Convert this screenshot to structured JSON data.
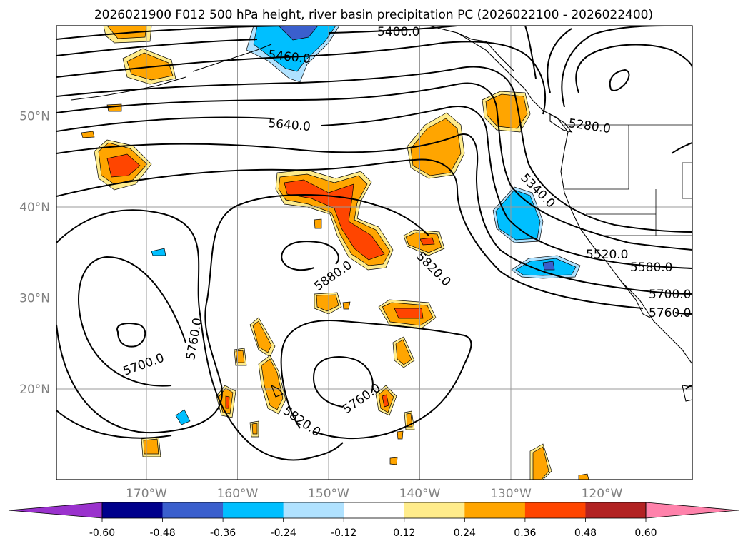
{
  "title": "2026021900 F012 500 hPa height, river basin precipitation PC (2026022100 - 2026022400)",
  "axes": {
    "lon_ticks": [
      {
        "value": -170,
        "label": "170°W"
      },
      {
        "value": -160,
        "label": "160°W"
      },
      {
        "value": -150,
        "label": "150°W"
      },
      {
        "value": -140,
        "label": "140°W"
      },
      {
        "value": -130,
        "label": "130°W"
      },
      {
        "value": -120,
        "label": "120°W"
      }
    ],
    "lat_ticks": [
      {
        "value": 20,
        "label": "20°N"
      },
      {
        "value": 30,
        "label": "30°N"
      },
      {
        "value": 40,
        "label": "40°N"
      },
      {
        "value": 50,
        "label": "50°N"
      }
    ],
    "extent": {
      "lon": [
        -180,
        -110
      ],
      "lat": [
        10,
        59
      ]
    },
    "grid": true
  },
  "colorbar": {
    "orientation": "horizontal",
    "extend": "both",
    "tick_labels": [
      "-0.60",
      "-0.48",
      "-0.36",
      "-0.24",
      "-0.12",
      "0.12",
      "0.24",
      "0.36",
      "0.48",
      "0.60"
    ],
    "colors": [
      "#9a32cd",
      "#00008b",
      "#3a5fcd",
      "#00bfff",
      "#b0e2ff",
      "#ffffff",
      "#ffec8b",
      "#ffa500",
      "#ff4500",
      "#b22222",
      "#ff82ab"
    ]
  },
  "contour_labels": [
    {
      "text": "5400.0"
    },
    {
      "text": "5460.0"
    },
    {
      "text": "5640.0"
    },
    {
      "text": "5280.0"
    },
    {
      "text": "5340.0"
    },
    {
      "text": "5520.0"
    },
    {
      "text": "5580.0"
    },
    {
      "text": "5700.0"
    },
    {
      "text": "5760.0"
    },
    {
      "text": "5880.0"
    },
    {
      "text": "5820.0"
    },
    {
      "text": "5760.0"
    },
    {
      "text": "5700.0"
    },
    {
      "text": "5760.0"
    },
    {
      "text": "5820.0"
    }
  ]
}
